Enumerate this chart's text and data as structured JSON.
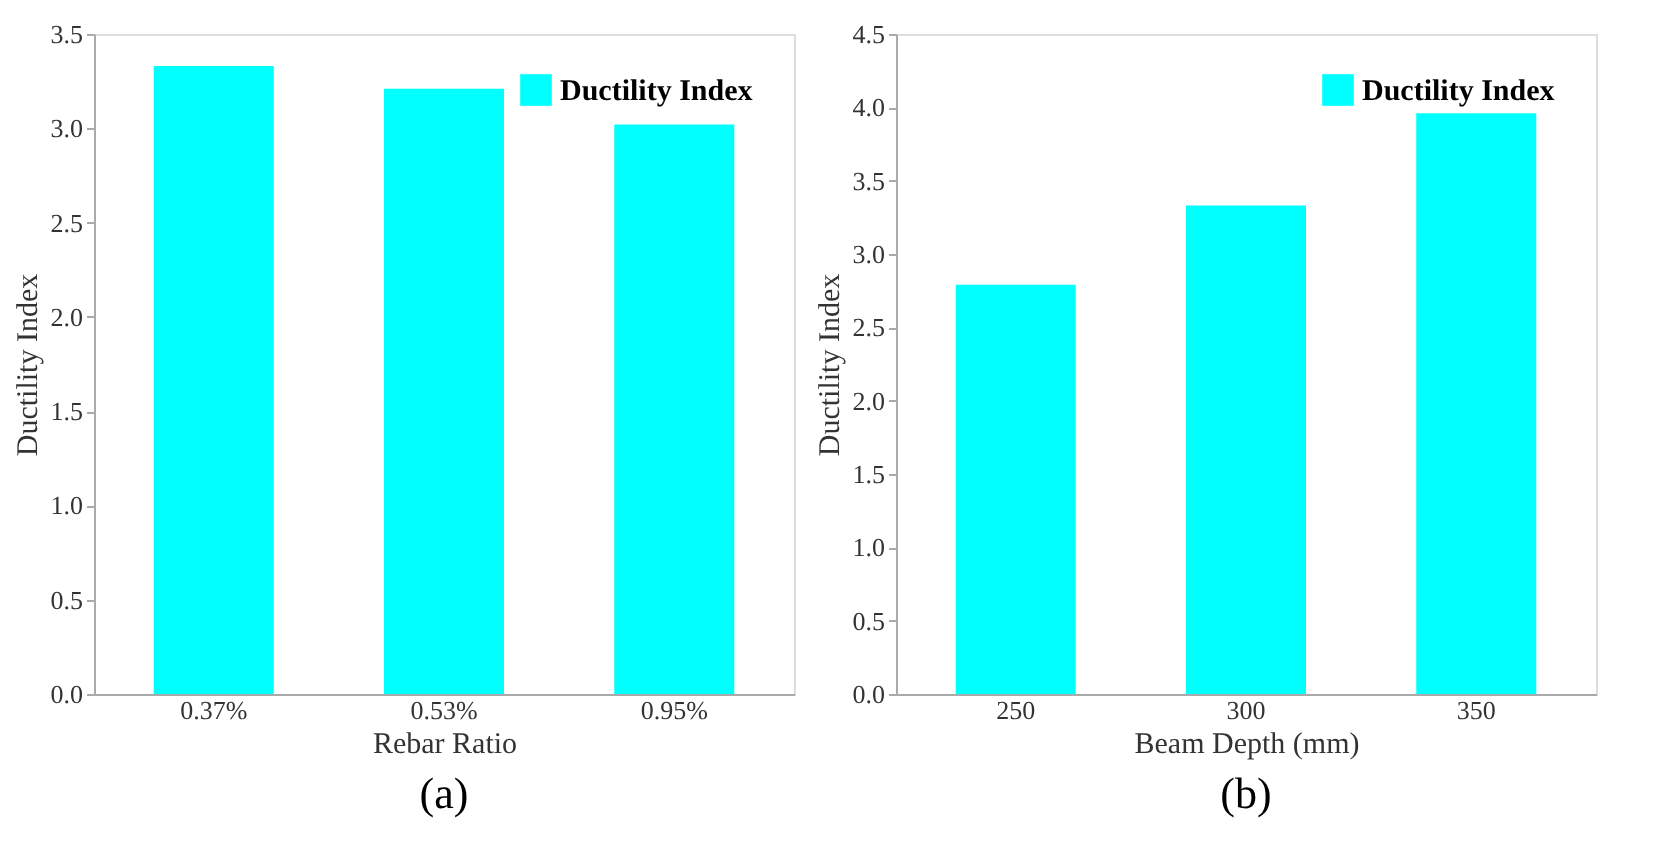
{
  "chart_data": [
    {
      "type": "bar",
      "title": "(a)",
      "xlabel": "Rebar Ratio",
      "ylabel": "Ductility Index",
      "categories": [
        "0.37%",
        "0.53%",
        "0.95%"
      ],
      "series": [
        {
          "name": "Ductility Index",
          "color": "#00ffff",
          "values": [
            3.33,
            3.21,
            3.02
          ]
        }
      ],
      "ylim": [
        0,
        3.5
      ],
      "yticks": [
        {
          "value": 0,
          "label": "0.0"
        },
        {
          "value": 0.5,
          "label": "0.5"
        },
        {
          "value": 1,
          "label": "1.0"
        },
        {
          "value": 1.5,
          "label": "1.5"
        },
        {
          "value": 2,
          "label": "2.0"
        },
        {
          "value": 2.5,
          "label": "2.5"
        },
        {
          "value": 3,
          "label": "3.0"
        },
        {
          "value": 3.5,
          "label": "3.5"
        }
      ],
      "legend": "top right",
      "grid": false
    },
    {
      "type": "bar",
      "title": "(b)",
      "xlabel": "Beam Depth (mm)",
      "ylabel": "Ductility Index",
      "categories": [
        "250",
        "300",
        "350"
      ],
      "series": [
        {
          "name": "Ductility Index",
          "color": "#00ffff",
          "values": [
            2.79,
            3.33,
            3.96
          ]
        }
      ],
      "ylim": [
        0,
        4.5
      ],
      "yticks": [
        {
          "value": 0,
          "label": "0.0"
        },
        {
          "value": 0.5,
          "label": "0.5"
        },
        {
          "value": 1,
          "label": "1.0"
        },
        {
          "value": 1.5,
          "label": "1.5"
        },
        {
          "value": 2,
          "label": "2.0"
        },
        {
          "value": 2.5,
          "label": "2.5"
        },
        {
          "value": 3,
          "label": "3.0"
        },
        {
          "value": 3.5,
          "label": "3.5"
        },
        {
          "value": 4,
          "label": "4.0"
        },
        {
          "value": 4.5,
          "label": "4.5"
        }
      ],
      "legend": "top right",
      "grid": false
    }
  ]
}
